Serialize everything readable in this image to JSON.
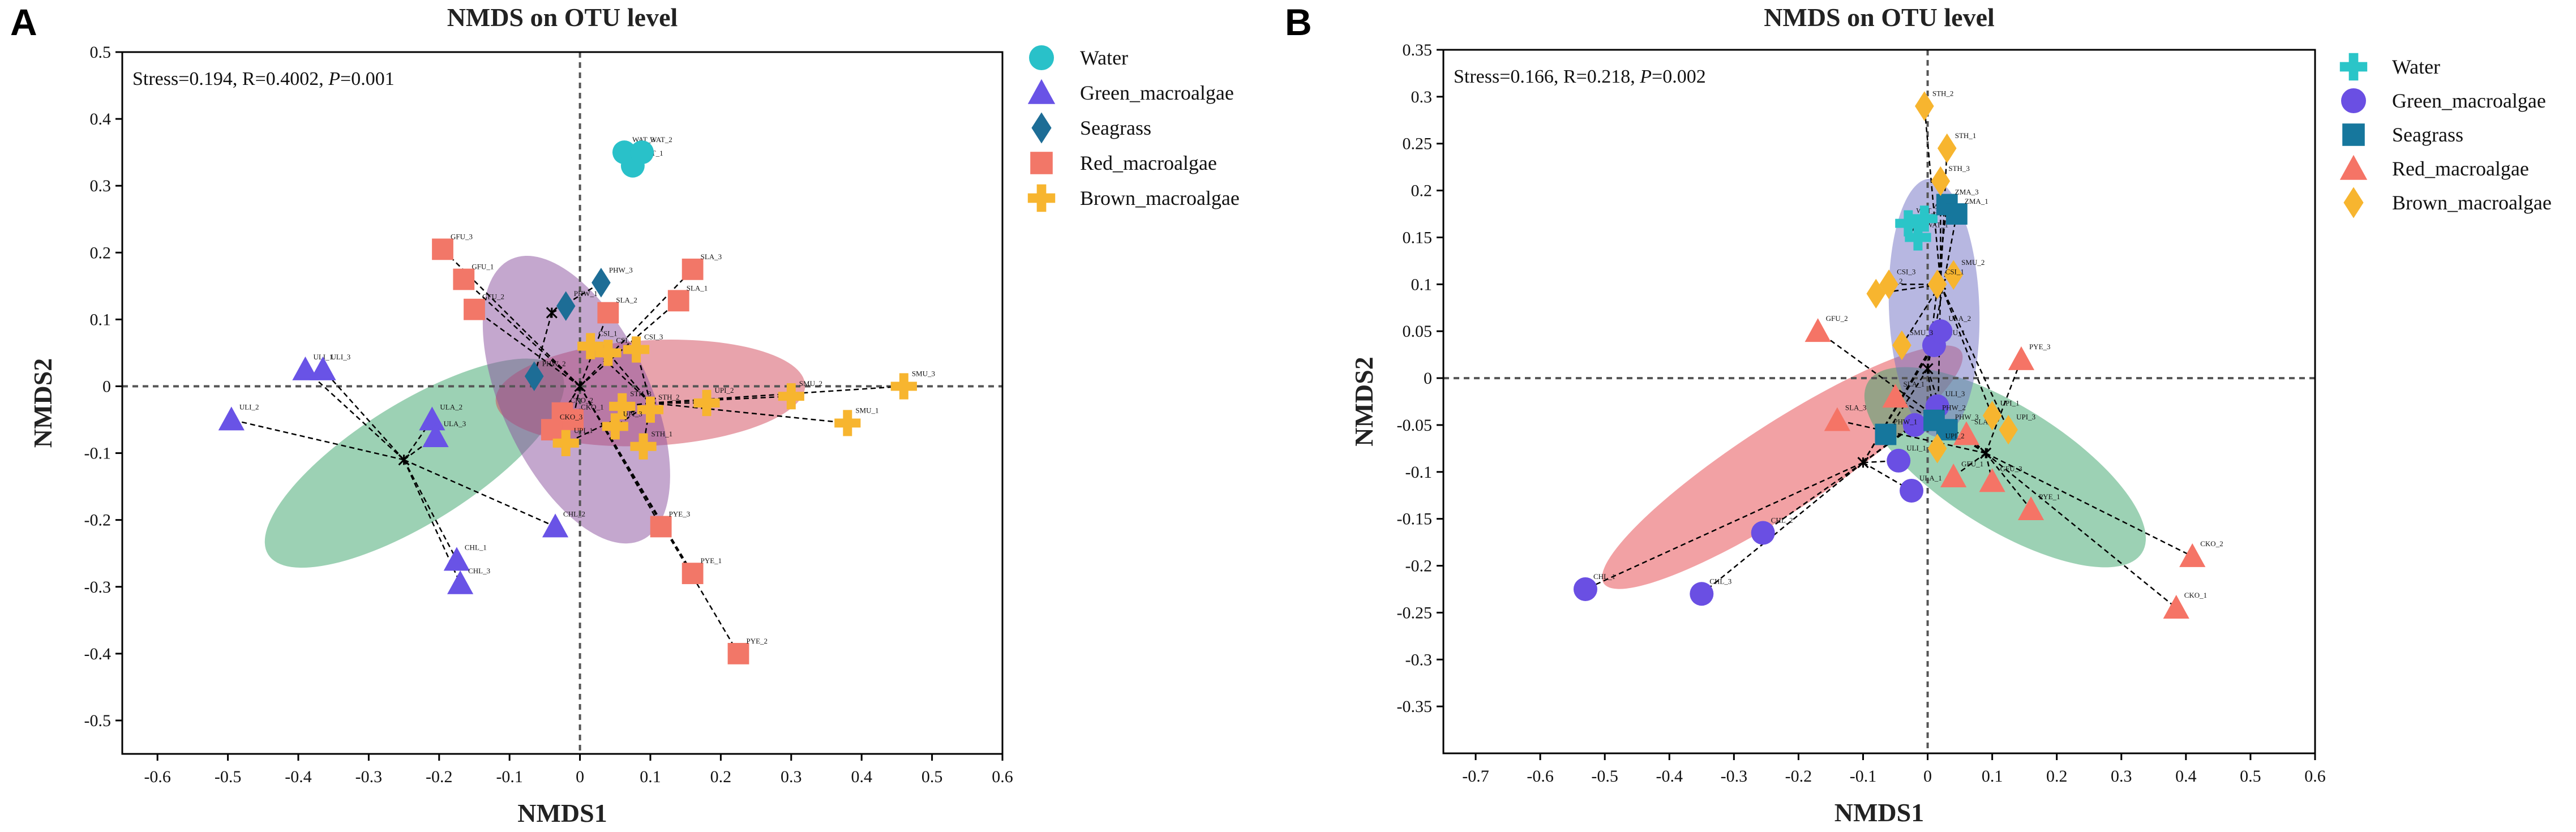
{
  "figure": {
    "panel_letters": [
      "A",
      "B"
    ]
  },
  "chart_data": [
    {
      "type": "scatter",
      "panel": "A",
      "title": "NMDS on OTU level",
      "xlabel": "NMDS1",
      "ylabel": "NMDS2",
      "xlim": [
        -0.65,
        0.6
      ],
      "ylim": [
        -0.55,
        0.5
      ],
      "xticks": [
        -0.6,
        -0.5,
        -0.4,
        -0.3,
        -0.2,
        -0.1,
        0,
        0.1,
        0.2,
        0.3,
        0.4,
        0.5,
        0.6
      ],
      "yticks": [
        -0.5,
        -0.4,
        -0.3,
        -0.2,
        -0.1,
        0,
        0.1,
        0.2,
        0.3,
        0.4,
        0.5
      ],
      "stats": {
        "stress": "Stress=0.194, R=0.4002, ",
        "p_label": "P",
        "p_value": "=0.001"
      },
      "legend_position": "outside-right",
      "series": [
        {
          "name": "Water",
          "marker": "circle",
          "color": "#29c1c9",
          "centroid": [
            0.07,
            0.34
          ],
          "points": [
            {
              "label": "WAT_3",
              "x": 0.063,
              "y": 0.35
            },
            {
              "label": "WAT_1",
              "x": 0.075,
              "y": 0.33
            },
            {
              "label": "WAT_2",
              "x": 0.088,
              "y": 0.35
            }
          ]
        },
        {
          "name": "Green_macroalgae",
          "marker": "triangle",
          "color": "#6953e6",
          "centroid": [
            -0.25,
            -0.11
          ],
          "ellipse": {
            "cx": -0.235,
            "cy": -0.115,
            "rx": 0.245,
            "ry": 0.085,
            "angle": -32,
            "color": "#3aa36a"
          },
          "points": [
            {
              "label": "ULI_2",
              "x": -0.495,
              "y": -0.05
            },
            {
              "label": "ULI_1",
              "x": -0.39,
              "y": 0.025
            },
            {
              "label": "ULI_3",
              "x": -0.365,
              "y": 0.025
            },
            {
              "label": "ULA_2",
              "x": -0.21,
              "y": -0.05
            },
            {
              "label": "ULA_3",
              "x": -0.205,
              "y": -0.075
            },
            {
              "label": "CHL_2",
              "x": -0.035,
              "y": -0.21
            },
            {
              "label": "CHL_1",
              "x": -0.175,
              "y": -0.26
            },
            {
              "label": "CHL_3",
              "x": -0.17,
              "y": -0.295
            }
          ]
        },
        {
          "name": "Seagrass",
          "marker": "diamond",
          "color": "#1d6d96",
          "centroid": [
            -0.04,
            0.11
          ],
          "points": [
            {
              "label": "PHW_3",
              "x": 0.03,
              "y": 0.155
            },
            {
              "label": "PHW_1",
              "x": -0.02,
              "y": 0.12
            },
            {
              "label": "PHW_2",
              "x": -0.065,
              "y": 0.015
            }
          ]
        },
        {
          "name": "Red_macroalgae",
          "marker": "square",
          "color": "#f27768",
          "centroid": [
            0.0,
            0.0
          ],
          "ellipse": {
            "cx": 0.1,
            "cy": -0.01,
            "rx": 0.22,
            "ry": 0.075,
            "angle": -3,
            "color": "#d2485a"
          },
          "points": [
            {
              "label": "GFU_3",
              "x": -0.195,
              "y": 0.205
            },
            {
              "label": "GFU_1",
              "x": -0.165,
              "y": 0.16
            },
            {
              "label": "GFU_2",
              "x": -0.15,
              "y": 0.115
            },
            {
              "label": "SLA_3",
              "x": 0.16,
              "y": 0.175
            },
            {
              "label": "SLA_1",
              "x": 0.14,
              "y": 0.128
            },
            {
              "label": "SLA_2",
              "x": 0.04,
              "y": 0.11
            },
            {
              "label": "CKO_2",
              "x": -0.025,
              "y": -0.04
            },
            {
              "label": "CKO_1",
              "x": -0.01,
              "y": -0.05
            },
            {
              "label": "CKO_3",
              "x": -0.04,
              "y": -0.065
            },
            {
              "label": "PYE_3",
              "x": 0.115,
              "y": -0.21
            },
            {
              "label": "PYE_1",
              "x": 0.16,
              "y": -0.28
            },
            {
              "label": "PYE_2",
              "x": 0.225,
              "y": -0.4
            }
          ]
        },
        {
          "name": "Brown_macroalgae",
          "marker": "cross",
          "color": "#f7b52f",
          "centroid": [
            0.1,
            -0.025
          ],
          "ellipse": {
            "cx": -0.005,
            "cy": -0.02,
            "rx": 0.22,
            "ry": 0.105,
            "angle": 65,
            "color": "#8a4f9e"
          },
          "points": [
            {
              "label": "SMU_3",
              "x": 0.46,
              "y": 0.0
            },
            {
              "label": "SMU_2",
              "x": 0.3,
              "y": -0.015
            },
            {
              "label": "SMU_1",
              "x": 0.38,
              "y": -0.055
            },
            {
              "label": "UPI_2",
              "x": 0.18,
              "y": -0.025
            },
            {
              "label": "CSI_1",
              "x": 0.015,
              "y": 0.06
            },
            {
              "label": "CSI_2",
              "x": 0.04,
              "y": 0.05
            },
            {
              "label": "CSI_3",
              "x": 0.08,
              "y": 0.055
            },
            {
              "label": "STH_3",
              "x": 0.06,
              "y": -0.03
            },
            {
              "label": "STH_2",
              "x": 0.1,
              "y": -0.035
            },
            {
              "label": "STH_1",
              "x": 0.09,
              "y": -0.09
            },
            {
              "label": "UPI_1",
              "x": -0.02,
              "y": -0.085
            },
            {
              "label": "UPI_3",
              "x": 0.05,
              "y": -0.06
            }
          ]
        }
      ]
    },
    {
      "type": "scatter",
      "panel": "B",
      "title": "NMDS on OTU level",
      "xlabel": "NMDS1",
      "ylabel": "NMDS2",
      "xlim": [
        -0.75,
        0.6
      ],
      "ylim": [
        -0.4,
        0.35
      ],
      "xticks": [
        -0.7,
        -0.6,
        -0.5,
        -0.4,
        -0.3,
        -0.2,
        -0.1,
        0,
        0.1,
        0.2,
        0.3,
        0.4,
        0.5,
        0.6
      ],
      "yticks": [
        -0.35,
        -0.3,
        -0.25,
        -0.2,
        -0.15,
        -0.1,
        -0.05,
        0,
        0.05,
        0.1,
        0.15,
        0.2,
        0.25,
        0.3,
        0.35
      ],
      "stats": {
        "stress": "Stress=0.166, R=0.218, ",
        "p_label": "P",
        "p_value": "=0.002"
      },
      "legend_position": "outside-right",
      "series": [
        {
          "name": "Water",
          "marker": "cross",
          "color": "#2ac5c8",
          "centroid": [
            -0.02,
            0.16
          ],
          "points": [
            {
              "label": "WAT_3",
              "x": -0.03,
              "y": 0.165
            },
            {
              "label": "WAT_1",
              "x": -0.015,
              "y": 0.15
            },
            {
              "label": "WAT_2",
              "x": -0.005,
              "y": 0.17
            }
          ]
        },
        {
          "name": "Green_macroalgae",
          "marker": "circle",
          "color": "#6a4fe3",
          "centroid": [
            -0.1,
            -0.09
          ],
          "ellipse": {
            "cx": -0.225,
            "cy": -0.095,
            "rx": 0.33,
            "ry": 0.068,
            "angle": -33,
            "color": "#e5434a"
          },
          "points": [
            {
              "label": "CHL_1",
              "x": -0.53,
              "y": -0.225
            },
            {
              "label": "CHL_3",
              "x": -0.35,
              "y": -0.23
            },
            {
              "label": "CHL_2",
              "x": -0.255,
              "y": -0.165
            },
            {
              "label": "ULA_1",
              "x": -0.025,
              "y": -0.12
            },
            {
              "label": "ULI_1",
              "x": -0.045,
              "y": -0.088
            },
            {
              "label": "ULI_2",
              "x": -0.02,
              "y": -0.05
            },
            {
              "label": "ULI_3",
              "x": 0.015,
              "y": -0.03
            },
            {
              "label": "SMU_1",
              "x": 0.01,
              "y": 0.035
            },
            {
              "label": "ULA_2",
              "x": 0.02,
              "y": 0.05
            }
          ]
        },
        {
          "name": "Seagrass",
          "marker": "square",
          "color": "#16779d",
          "centroid": [
            0.0,
            0.01
          ],
          "points": [
            {
              "label": "ZMA_3",
              "x": 0.03,
              "y": 0.185
            },
            {
              "label": "ZMA_1",
              "x": 0.045,
              "y": 0.175
            },
            {
              "label": "PHW_1",
              "x": -0.065,
              "y": -0.06
            },
            {
              "label": "PHW_2",
              "x": 0.01,
              "y": -0.045
            },
            {
              "label": "PHW_3",
              "x": 0.03,
              "y": -0.055
            }
          ]
        },
        {
          "name": "Red_macroalgae",
          "marker": "triangle",
          "color": "#f57466",
          "centroid": [
            0.09,
            -0.08
          ],
          "ellipse": {
            "cx": 0.12,
            "cy": -0.095,
            "rx": 0.25,
            "ry": 0.095,
            "angle": 32,
            "color": "#3aa36a"
          },
          "points": [
            {
              "label": "GFU_2",
              "x": -0.17,
              "y": 0.05
            },
            {
              "label": "SLA_3",
              "x": -0.14,
              "y": -0.045
            },
            {
              "label": "SLA_1",
              "x": -0.05,
              "y": -0.02
            },
            {
              "label": "SLA_2",
              "x": 0.06,
              "y": -0.06
            },
            {
              "label": "PYE_3",
              "x": 0.145,
              "y": 0.02
            },
            {
              "label": "GFU_1",
              "x": 0.04,
              "y": -0.105
            },
            {
              "label": "GFU_3",
              "x": 0.1,
              "y": -0.11
            },
            {
              "label": "PYE_1",
              "x": 0.16,
              "y": -0.14
            },
            {
              "label": "CKO_2",
              "x": 0.41,
              "y": -0.19
            },
            {
              "label": "CKO_1",
              "x": 0.385,
              "y": -0.245
            }
          ]
        },
        {
          "name": "Brown_macroalgae",
          "marker": "diamond",
          "color": "#f7b52f",
          "centroid": [
            0.02,
            0.1
          ],
          "ellipse": {
            "cx": 0.01,
            "cy": 0.075,
            "rx": 0.2,
            "ry": 0.07,
            "angle": 88,
            "color": "#7070c4"
          },
          "points": [
            {
              "label": "STH_2",
              "x": -0.005,
              "y": 0.29
            },
            {
              "label": "STH_1",
              "x": 0.03,
              "y": 0.245
            },
            {
              "label": "STH_3",
              "x": 0.02,
              "y": 0.21
            },
            {
              "label": "SMU_2",
              "x": 0.04,
              "y": 0.11
            },
            {
              "label": "CSI_2",
              "x": -0.08,
              "y": 0.09
            },
            {
              "label": "CSI_3",
              "x": -0.06,
              "y": 0.1
            },
            {
              "label": "CSI_1",
              "x": 0.015,
              "y": 0.1
            },
            {
              "label": "SMU_3",
              "x": -0.04,
              "y": 0.035
            },
            {
              "label": "UPI_3",
              "x": 0.125,
              "y": -0.055
            },
            {
              "label": "UPI_1",
              "x": 0.1,
              "y": -0.04
            },
            {
              "label": "UPI_2",
              "x": 0.015,
              "y": -0.075
            }
          ]
        }
      ]
    }
  ]
}
